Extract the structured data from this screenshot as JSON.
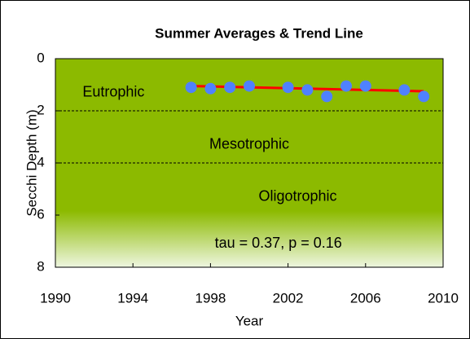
{
  "chart_data": {
    "type": "scatter",
    "title": "Summer Averages & Trend Line",
    "x_label": "Year",
    "y_label": "Secchi Depth (m)",
    "xlim": [
      1990,
      2010
    ],
    "xticks": [
      1990,
      1994,
      1998,
      2002,
      2006,
      2010
    ],
    "ylim": [
      0,
      8
    ],
    "yticks": [
      0,
      2,
      4,
      6,
      8
    ],
    "y_inverted": true,
    "series": [
      {
        "name": "Summer average",
        "color": "#4f81ff",
        "x": [
          1997,
          1998,
          1999,
          2000,
          2002,
          2003,
          2004,
          2005,
          2006,
          2008,
          2009
        ],
        "values": [
          1.1,
          1.15,
          1.1,
          1.05,
          1.1,
          1.2,
          1.45,
          1.05,
          1.05,
          1.2,
          1.45
        ]
      }
    ],
    "trend": {
      "color": "#ff0000",
      "x": [
        1997,
        2009
      ],
      "values": [
        1.05,
        1.25
      ]
    },
    "zone_boundaries": [
      2,
      4
    ],
    "zones": [
      {
        "label": "Eutrophic",
        "x": 1993,
        "y": 1.3
      },
      {
        "label": "Mesotrophic",
        "x": 2000,
        "y": 3.3
      },
      {
        "label": "Oligotrophic",
        "x": 2002.5,
        "y": 5.3
      }
    ],
    "annotation": {
      "text": "tau = 0.37, p = 0.16",
      "x": 2001.5,
      "y": 7.1
    }
  }
}
